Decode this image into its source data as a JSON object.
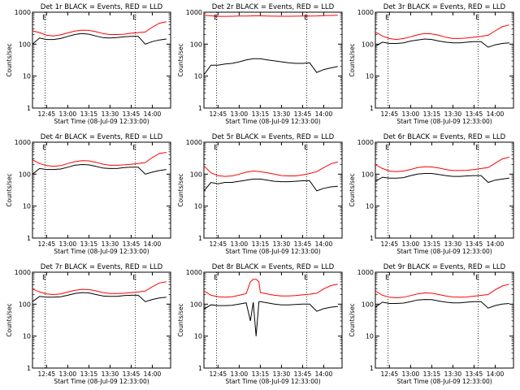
{
  "figure": {
    "ylabel": "Counts/sec",
    "xlabel": "Start Time (08-Jul-09 12:33:00)",
    "ytick_labels": [
      "1",
      "10",
      "100",
      "1000"
    ],
    "xtick_labels": [
      "12:45",
      "13:00",
      "13:15",
      "13:30",
      "13:45",
      "14:00"
    ],
    "marker_label": "E",
    "colors": {
      "events": "#000000",
      "lld": "#ff0000",
      "axes": "#000000"
    }
  },
  "chart_data": [
    {
      "type": "line",
      "title": "Det 1r BLACK = Events, RED = LLD",
      "yscale": "log",
      "ylim": [
        1,
        1000
      ],
      "x": [
        "12:35",
        "12:40",
        "12:45",
        "12:50",
        "12:55",
        "13:00",
        "13:05",
        "13:10",
        "13:15",
        "13:20",
        "13:25",
        "13:30",
        "13:35",
        "13:40",
        "13:45",
        "13:50",
        "13:55",
        "14:00",
        "14:05",
        "14:10"
      ],
      "series": [
        {
          "name": "Events",
          "color": "#000000",
          "values": [
            100,
            155,
            140,
            140,
            150,
            175,
            200,
            215,
            205,
            180,
            160,
            155,
            160,
            170,
            175,
            175,
            100,
            120,
            135,
            145
          ]
        },
        {
          "name": "LLD",
          "color": "#ff0000",
          "values": [
            260,
            230,
            190,
            180,
            195,
            225,
            255,
            275,
            270,
            245,
            215,
            200,
            200,
            205,
            220,
            230,
            240,
            340,
            450,
            500
          ]
        }
      ]
    },
    {
      "type": "line",
      "title": "Det 2r BLACK = Events, RED = LLD",
      "yscale": "log",
      "ylim": [
        1,
        1000
      ],
      "x": [
        "12:35",
        "12:40",
        "12:45",
        "12:50",
        "12:55",
        "13:00",
        "13:05",
        "13:10",
        "13:15",
        "13:20",
        "13:25",
        "13:30",
        "13:35",
        "13:40",
        "13:45",
        "13:50",
        "13:55",
        "14:00",
        "14:05",
        "14:10"
      ],
      "series": [
        {
          "name": "Events",
          "color": "#000000",
          "values": [
            11,
            22,
            22,
            24,
            25,
            28,
            32,
            35,
            35,
            32,
            30,
            28,
            26,
            25,
            25,
            26,
            13,
            16,
            18,
            20
          ]
        },
        {
          "name": "LLD",
          "color": "#ff0000",
          "values": [
            800,
            770,
            740,
            740,
            745,
            755,
            760,
            770,
            770,
            760,
            750,
            745,
            745,
            750,
            755,
            760,
            765,
            780,
            790,
            800
          ]
        }
      ]
    },
    {
      "type": "line",
      "title": "Det 3r BLACK = Events, RED = LLD",
      "yscale": "log",
      "ylim": [
        1,
        1000
      ],
      "x": [
        "12:35",
        "12:40",
        "12:45",
        "12:50",
        "12:55",
        "13:00",
        "13:05",
        "13:10",
        "13:15",
        "13:20",
        "13:25",
        "13:30",
        "13:35",
        "13:40",
        "13:45",
        "13:50",
        "13:55",
        "14:00",
        "14:05",
        "14:10"
      ],
      "series": [
        {
          "name": "Events",
          "color": "#000000",
          "values": [
            85,
            115,
            105,
            105,
            110,
            125,
            135,
            145,
            140,
            125,
            115,
            110,
            110,
            115,
            120,
            120,
            80,
            95,
            105,
            110
          ]
        },
        {
          "name": "LLD",
          "color": "#ff0000",
          "values": [
            240,
            180,
            150,
            140,
            150,
            170,
            195,
            215,
            210,
            190,
            165,
            150,
            150,
            155,
            165,
            175,
            190,
            260,
            350,
            400
          ]
        }
      ]
    },
    {
      "type": "line",
      "title": "Det 4r BLACK = Events, RED = LLD",
      "yscale": "log",
      "ylim": [
        1,
        1000
      ],
      "x": [
        "12:35",
        "12:40",
        "12:45",
        "12:50",
        "12:55",
        "13:00",
        "13:05",
        "13:10",
        "13:15",
        "13:20",
        "13:25",
        "13:30",
        "13:35",
        "13:40",
        "13:45",
        "13:50",
        "13:55",
        "14:00",
        "14:05",
        "14:10"
      ],
      "series": [
        {
          "name": "Events",
          "color": "#000000",
          "values": [
            100,
            150,
            140,
            140,
            145,
            165,
            190,
            200,
            195,
            175,
            155,
            150,
            150,
            160,
            165,
            165,
            100,
            115,
            130,
            140
          ]
        },
        {
          "name": "LLD",
          "color": "#ff0000",
          "values": [
            280,
            215,
            185,
            175,
            185,
            215,
            245,
            265,
            260,
            235,
            205,
            190,
            190,
            195,
            205,
            215,
            230,
            330,
            440,
            480
          ]
        }
      ]
    },
    {
      "type": "line",
      "title": "Det 5r BLACK = Events, RED = LLD",
      "yscale": "log",
      "ylim": [
        1,
        1000
      ],
      "x": [
        "12:35",
        "12:40",
        "12:45",
        "12:50",
        "12:55",
        "13:00",
        "13:05",
        "13:10",
        "13:15",
        "13:20",
        "13:25",
        "13:30",
        "13:35",
        "13:40",
        "13:45",
        "13:50",
        "13:55",
        "14:00",
        "14:05",
        "14:10"
      ],
      "series": [
        {
          "name": "Events",
          "color": "#000000",
          "values": [
            30,
            55,
            50,
            55,
            55,
            60,
            65,
            70,
            70,
            65,
            60,
            58,
            58,
            60,
            62,
            62,
            30,
            36,
            40,
            42
          ]
        },
        {
          "name": "LLD",
          "color": "#ff0000",
          "values": [
            180,
            110,
            90,
            85,
            88,
            100,
            115,
            125,
            120,
            110,
            100,
            90,
            88,
            88,
            95,
            105,
            120,
            160,
            210,
            240
          ]
        }
      ]
    },
    {
      "type": "line",
      "title": "Det 6r BLACK = Events, RED = LLD",
      "yscale": "log",
      "ylim": [
        1,
        1000
      ],
      "x": [
        "12:35",
        "12:40",
        "12:45",
        "12:50",
        "12:55",
        "13:00",
        "13:05",
        "13:10",
        "13:15",
        "13:20",
        "13:25",
        "13:30",
        "13:35",
        "13:40",
        "13:45",
        "13:50",
        "13:55",
        "14:00",
        "14:05",
        "14:10"
      ],
      "series": [
        {
          "name": "Events",
          "color": "#000000",
          "values": [
            60,
            80,
            75,
            75,
            78,
            90,
            100,
            105,
            105,
            98,
            90,
            85,
            85,
            88,
            90,
            90,
            55,
            65,
            70,
            75
          ]
        },
        {
          "name": "LLD",
          "color": "#ff0000",
          "values": [
            200,
            150,
            125,
            120,
            125,
            140,
            160,
            170,
            168,
            155,
            140,
            130,
            130,
            132,
            140,
            150,
            160,
            220,
            300,
            340
          ]
        }
      ]
    },
    {
      "type": "line",
      "title": "Det 7r BLACK = Events, RED = LLD",
      "yscale": "log",
      "ylim": [
        1,
        1000
      ],
      "x": [
        "12:35",
        "12:40",
        "12:45",
        "12:50",
        "12:55",
        "13:00",
        "13:05",
        "13:10",
        "13:15",
        "13:20",
        "13:25",
        "13:30",
        "13:35",
        "13:40",
        "13:45",
        "13:50",
        "13:55",
        "14:00",
        "14:05",
        "14:10"
      ],
      "series": [
        {
          "name": "Events",
          "color": "#000000",
          "values": [
            120,
            175,
            165,
            165,
            170,
            190,
            215,
            230,
            225,
            200,
            180,
            175,
            175,
            185,
            190,
            190,
            120,
            140,
            155,
            165
          ]
        },
        {
          "name": "LLD",
          "color": "#ff0000",
          "values": [
            300,
            240,
            210,
            200,
            210,
            240,
            270,
            290,
            285,
            260,
            230,
            215,
            215,
            220,
            230,
            240,
            255,
            350,
            460,
            500
          ]
        }
      ]
    },
    {
      "type": "line",
      "title": "Det 8r BLACK = Events, RED = LLD",
      "yscale": "log",
      "ylim": [
        1,
        1000
      ],
      "x": [
        "12:35",
        "12:40",
        "12:45",
        "12:50",
        "12:55",
        "13:00",
        "13:05",
        "13:08",
        "13:10",
        "13:12",
        "13:14",
        "13:15",
        "13:20",
        "13:25",
        "13:30",
        "13:35",
        "13:40",
        "13:45",
        "13:50",
        "13:55",
        "14:00",
        "14:05",
        "14:10"
      ],
      "series": [
        {
          "name": "Events",
          "color": "#000000",
          "values": [
            70,
            95,
            90,
            90,
            92,
            100,
            110,
            30,
            115,
            10,
            120,
            120,
            110,
            100,
            95,
            95,
            98,
            100,
            100,
            60,
            72,
            80,
            85
          ]
        },
        {
          "name": "LLD",
          "color": "#ff0000",
          "values": [
            260,
            190,
            170,
            165,
            170,
            190,
            215,
            500,
            600,
            600,
            500,
            230,
            210,
            190,
            180,
            180,
            185,
            195,
            205,
            220,
            300,
            380,
            420
          ]
        }
      ]
    },
    {
      "type": "line",
      "title": "Det 9r BLACK = Events, RED = LLD",
      "yscale": "log",
      "ylim": [
        1,
        1000
      ],
      "x": [
        "12:35",
        "12:40",
        "12:45",
        "12:50",
        "12:55",
        "13:00",
        "13:05",
        "13:10",
        "13:15",
        "13:20",
        "13:25",
        "13:30",
        "13:35",
        "13:40",
        "13:45",
        "13:50",
        "13:55",
        "14:00",
        "14:05",
        "14:10"
      ],
      "series": [
        {
          "name": "Events",
          "color": "#000000",
          "values": [
            80,
            115,
            105,
            105,
            108,
            120,
            135,
            140,
            138,
            125,
            115,
            110,
            110,
            115,
            120,
            120,
            75,
            90,
            100,
            105
          ]
        },
        {
          "name": "LLD",
          "color": "#ff0000",
          "values": [
            260,
            190,
            165,
            158,
            165,
            185,
            210,
            225,
            220,
            200,
            180,
            168,
            165,
            168,
            178,
            188,
            200,
            280,
            370,
            420
          ]
        }
      ]
    }
  ]
}
